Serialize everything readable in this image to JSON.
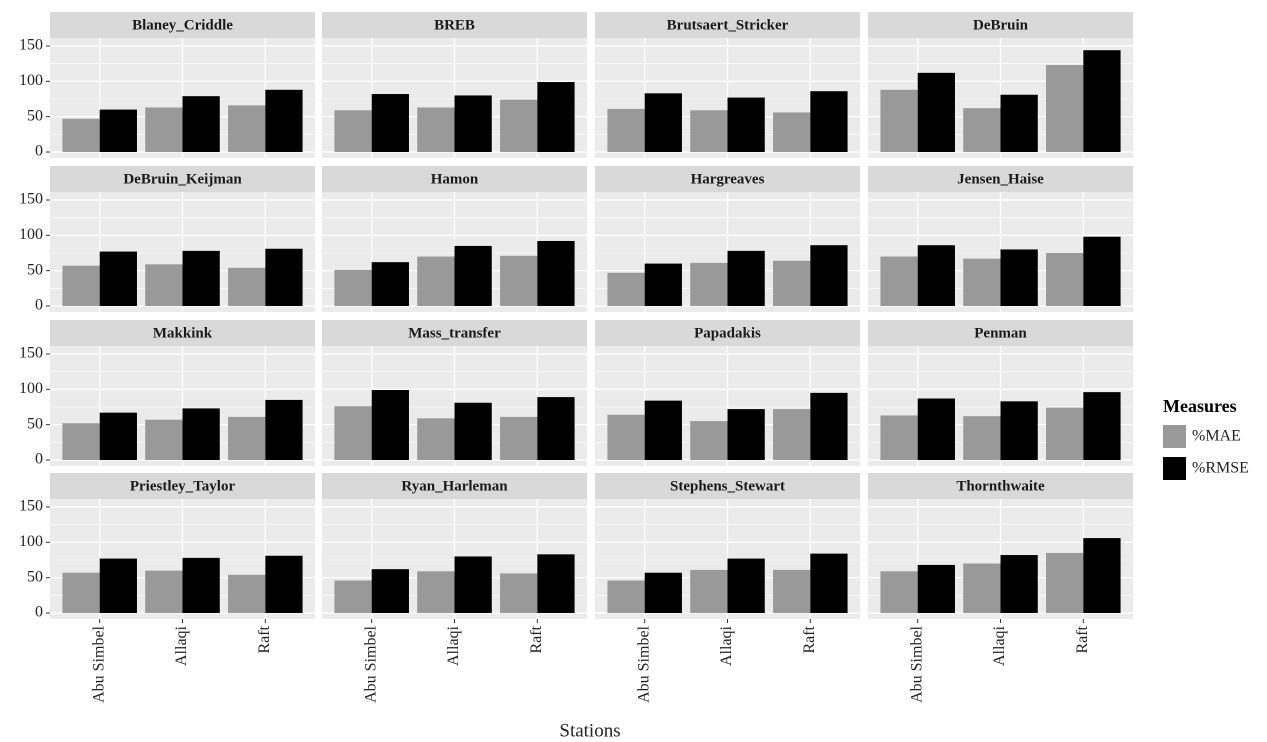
{
  "chart_data": {
    "type": "bar",
    "x_label": "Stations",
    "legend_title": "Measures",
    "categories": [
      "Abu Simbel",
      "Allaqi",
      "Raft"
    ],
    "ylim": [
      -8.5,
      161.3
    ],
    "yticks": [
      0,
      50,
      100,
      150
    ],
    "grid": true,
    "legend_position": "right",
    "legend": [
      {
        "name": "%MAE",
        "color": "#999999"
      },
      {
        "name": "%RMSE",
        "color": "#000000"
      }
    ],
    "panels": [
      {
        "title": "Blaney_Criddle",
        "series": [
          {
            "values": [
              47,
              63,
              66
            ]
          },
          {
            "values": [
              60,
              79,
              88
            ]
          }
        ]
      },
      {
        "title": "BREB",
        "series": [
          {
            "values": [
              59,
              63,
              74
            ]
          },
          {
            "values": [
              82,
              80,
              99
            ]
          }
        ]
      },
      {
        "title": "Brutsaert_Stricker",
        "series": [
          {
            "values": [
              61,
              59,
              56
            ]
          },
          {
            "values": [
              83,
              77,
              86
            ]
          }
        ]
      },
      {
        "title": "DeBruin",
        "series": [
          {
            "values": [
              88,
              62,
              123
            ]
          },
          {
            "values": [
              112,
              81,
              144
            ]
          }
        ]
      },
      {
        "title": "DeBruin_Keijman",
        "series": [
          {
            "values": [
              57,
              59,
              54
            ]
          },
          {
            "values": [
              77,
              78,
              81
            ]
          }
        ]
      },
      {
        "title": "Hamon",
        "series": [
          {
            "values": [
              51,
              70,
              71
            ]
          },
          {
            "values": [
              62,
              85,
              92
            ]
          }
        ]
      },
      {
        "title": "Hargreaves",
        "series": [
          {
            "values": [
              47,
              61,
              64
            ]
          },
          {
            "values": [
              60,
              78,
              86
            ]
          }
        ]
      },
      {
        "title": "Jensen_Haise",
        "series": [
          {
            "values": [
              70,
              67,
              75
            ]
          },
          {
            "values": [
              86,
              80,
              98
            ]
          }
        ]
      },
      {
        "title": "Makkink",
        "series": [
          {
            "values": [
              52,
              57,
              61
            ]
          },
          {
            "values": [
              67,
              73,
              85
            ]
          }
        ]
      },
      {
        "title": "Mass_transfer",
        "series": [
          {
            "values": [
              76,
              59,
              61
            ]
          },
          {
            "values": [
              99,
              81,
              89
            ]
          }
        ]
      },
      {
        "title": "Papadakis",
        "series": [
          {
            "values": [
              64,
              55,
              72
            ]
          },
          {
            "values": [
              84,
              72,
              95
            ]
          }
        ]
      },
      {
        "title": "Penman",
        "series": [
          {
            "values": [
              63,
              62,
              74
            ]
          },
          {
            "values": [
              87,
              83,
              96
            ]
          }
        ]
      },
      {
        "title": "Priestley_Taylor",
        "series": [
          {
            "values": [
              57,
              60,
              54
            ]
          },
          {
            "values": [
              77,
              78,
              81
            ]
          }
        ]
      },
      {
        "title": "Ryan_Harleman",
        "series": [
          {
            "values": [
              46,
              59,
              56
            ]
          },
          {
            "values": [
              62,
              80,
              83
            ]
          }
        ]
      },
      {
        "title": "Stephens_Stewart",
        "series": [
          {
            "values": [
              46,
              61,
              61
            ]
          },
          {
            "values": [
              57,
              77,
              84
            ]
          }
        ]
      },
      {
        "title": "Thornthwaite",
        "series": [
          {
            "values": [
              59,
              70,
              85
            ]
          },
          {
            "values": [
              68,
              82,
              106
            ]
          }
        ]
      }
    ]
  }
}
